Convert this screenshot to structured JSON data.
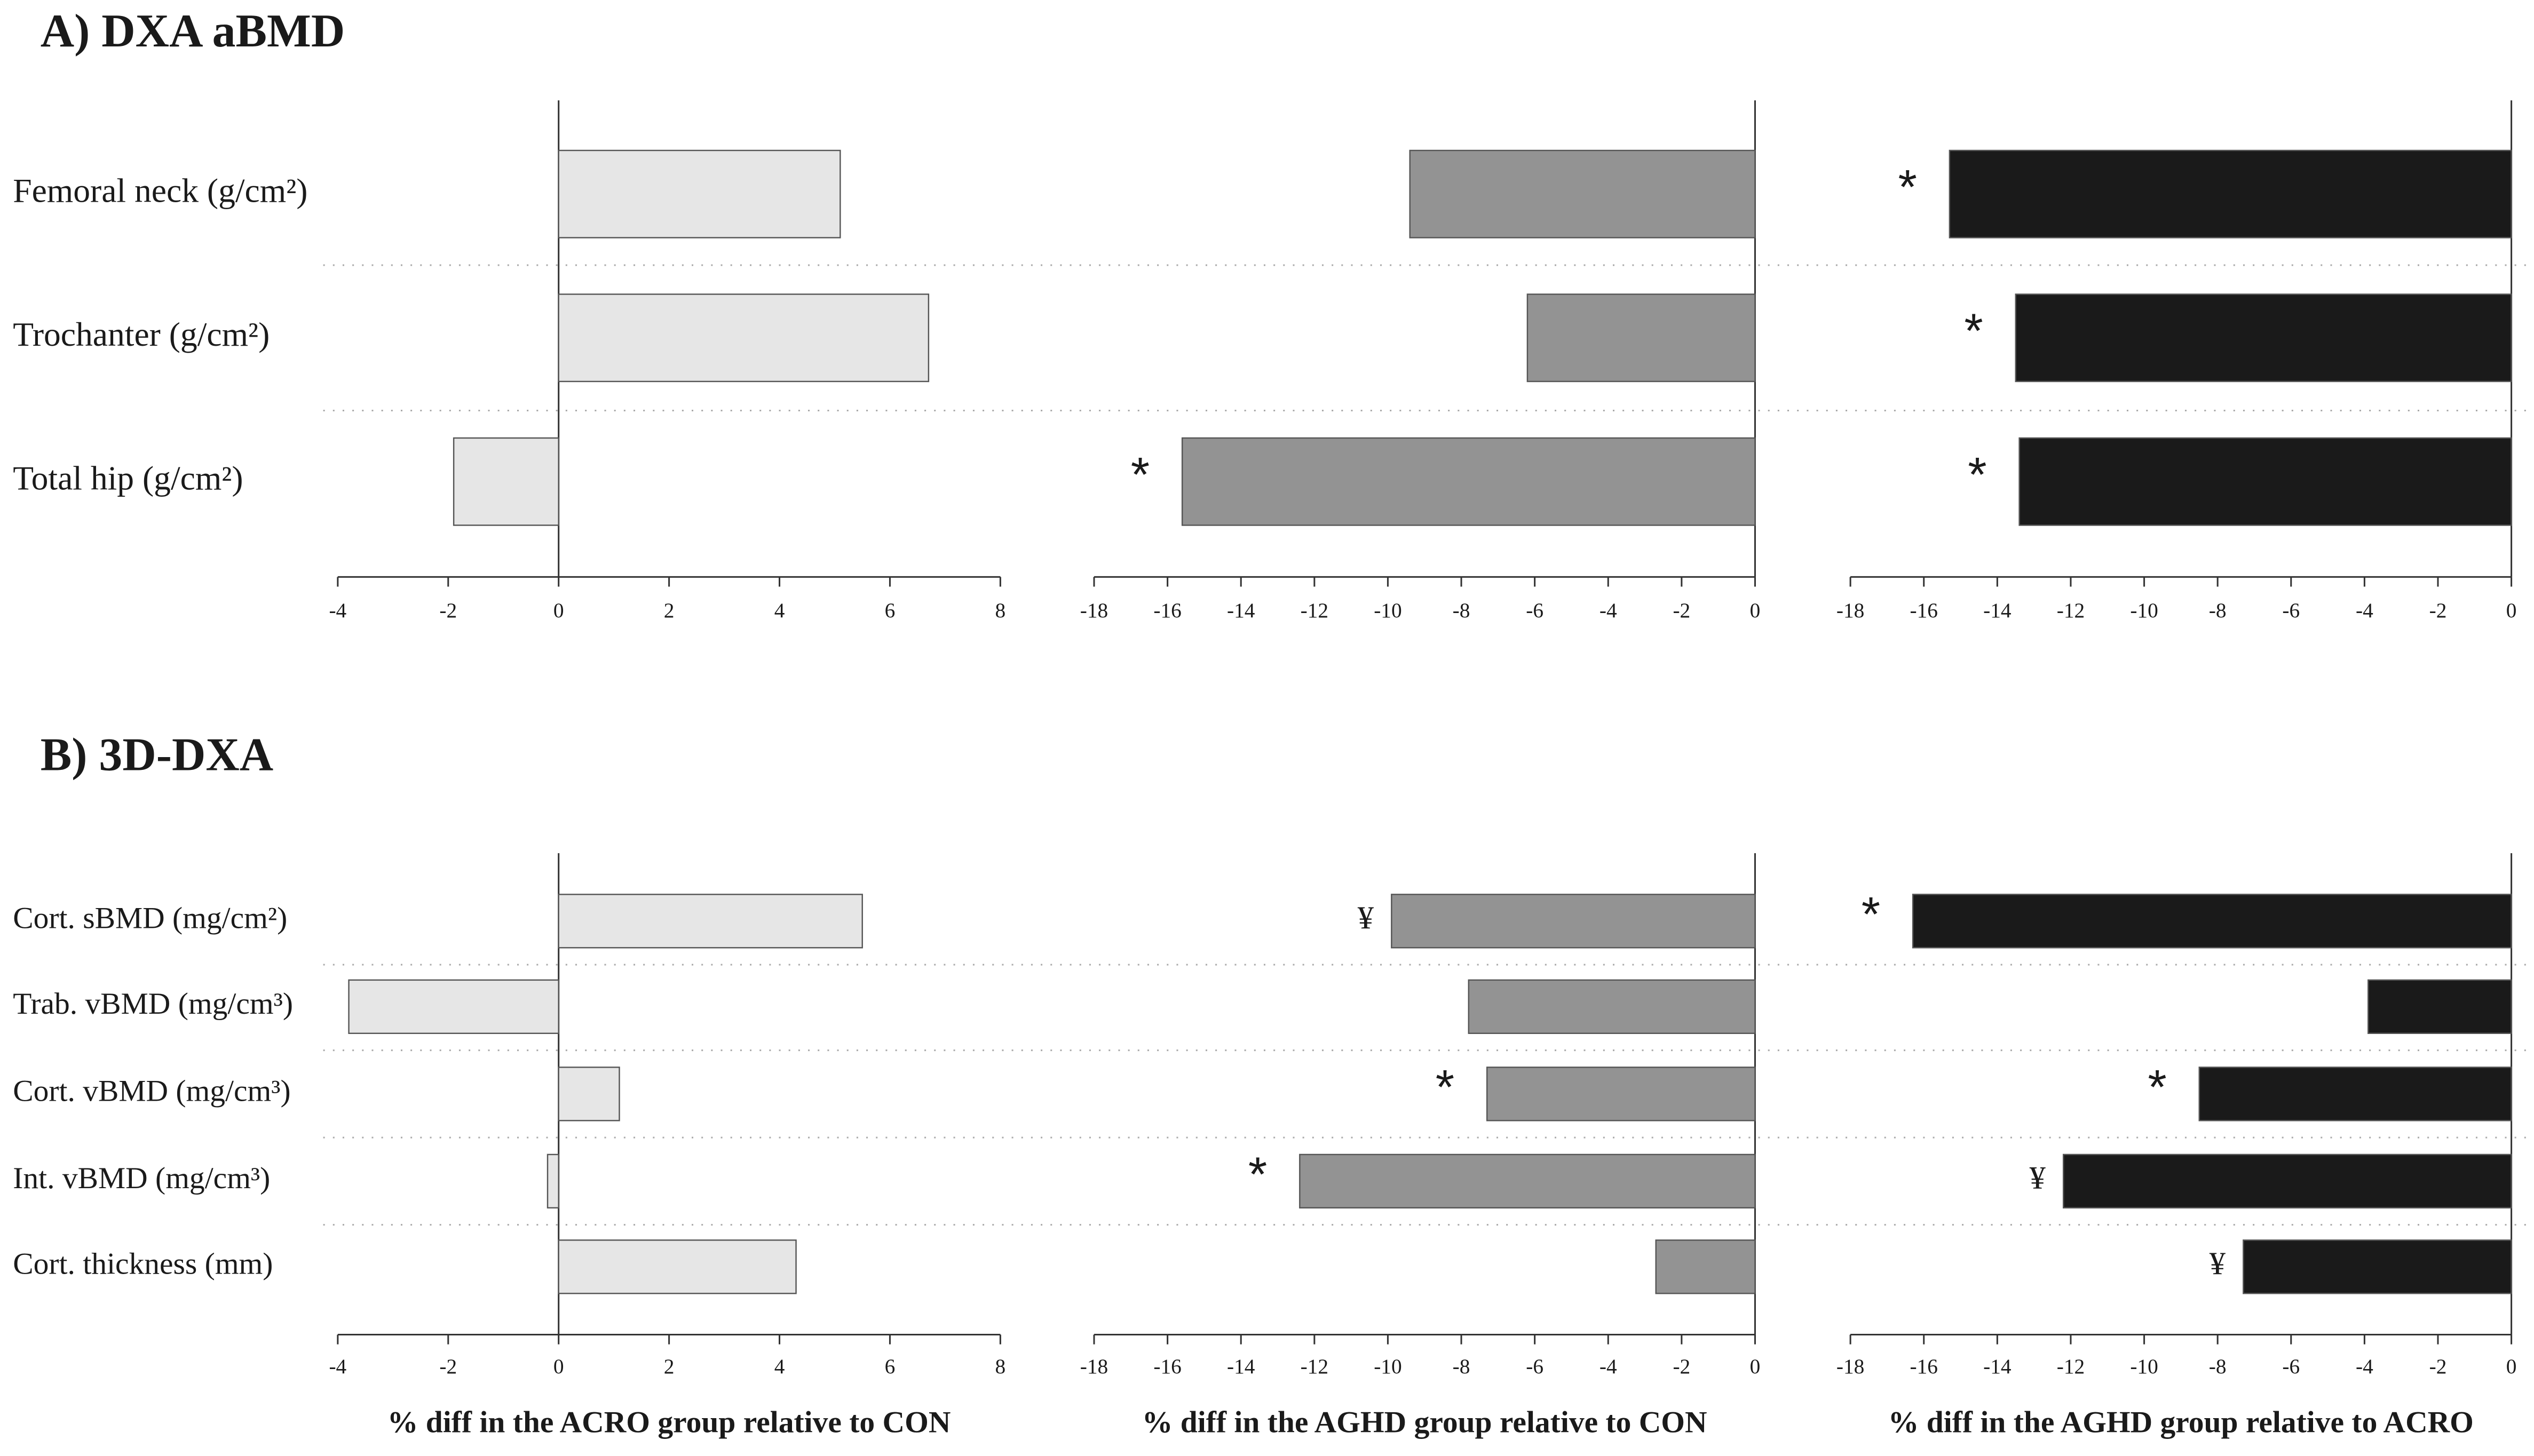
{
  "chart_data": [
    {
      "type": "bar",
      "orientation": "horizontal",
      "title": "A) DXA aBMD",
      "categories": [
        "Femoral neck (g/cm²)",
        "Trochanter (g/cm²)",
        "Total hip (g/cm²)"
      ],
      "panels": [
        {
          "color": "#e6e6e6",
          "values": [
            5.1,
            6.7,
            -1.9
          ],
          "annotations": [
            null,
            null,
            null
          ],
          "xlim": [
            -4,
            8
          ],
          "xticks": [
            -4,
            -2,
            0,
            2,
            4,
            6,
            8
          ]
        },
        {
          "color": "#939393",
          "values": [
            -9.4,
            -6.2,
            -15.6
          ],
          "annotations": [
            null,
            null,
            "*"
          ],
          "xlim": [
            -18,
            0
          ],
          "xticks": [
            -18,
            -16,
            -14,
            -12,
            -10,
            -8,
            -6,
            -4,
            -2,
            0
          ]
        },
        {
          "color": "#1a1a1a",
          "values": [
            -15.3,
            -13.5,
            -13.4
          ],
          "annotations": [
            "*",
            "*",
            "*"
          ],
          "xlim": [
            -18,
            0
          ],
          "xticks": [
            -18,
            -16,
            -14,
            -12,
            -10,
            -8,
            -6,
            -4,
            -2,
            0
          ]
        }
      ]
    },
    {
      "type": "bar",
      "orientation": "horizontal",
      "title": "B) 3D-DXA",
      "categories": [
        "Cort. sBMD (mg/cm²)",
        "Trab. vBMD (mg/cm³)",
        "Cort. vBMD (mg/cm³)",
        "Int. vBMD (mg/cm³)",
        "Cort. thickness (mm)"
      ],
      "panels": [
        {
          "color": "#e6e6e6",
          "values": [
            5.5,
            -3.8,
            1.1,
            -0.2,
            4.3
          ],
          "annotations": [
            null,
            null,
            null,
            null,
            null
          ],
          "xlim": [
            -4,
            8
          ],
          "xticks": [
            -4,
            -2,
            0,
            2,
            4,
            6,
            8
          ],
          "xlabel": "% diff in the ACRO group relative to CON"
        },
        {
          "color": "#939393",
          "values": [
            -9.9,
            -7.8,
            -7.3,
            -12.4,
            -2.7
          ],
          "annotations": [
            "¥",
            null,
            "*",
            "*",
            null
          ],
          "xlim": [
            -18,
            0
          ],
          "xticks": [
            -18,
            -16,
            -14,
            -12,
            -10,
            -8,
            -6,
            -4,
            -2,
            0
          ],
          "xlabel": "% diff in the AGHD group relative to CON"
        },
        {
          "color": "#1a1a1a",
          "values": [
            -16.3,
            -3.9,
            -8.5,
            -12.2,
            -7.3
          ],
          "annotations": [
            "*",
            null,
            "*",
            "¥",
            "¥"
          ],
          "xlim": [
            -18,
            0
          ],
          "xticks": [
            -18,
            -16,
            -14,
            -12,
            -10,
            -8,
            -6,
            -4,
            -2,
            0
          ],
          "xlabel": "% diff in the AGHD group relative to ACRO"
        }
      ]
    }
  ]
}
